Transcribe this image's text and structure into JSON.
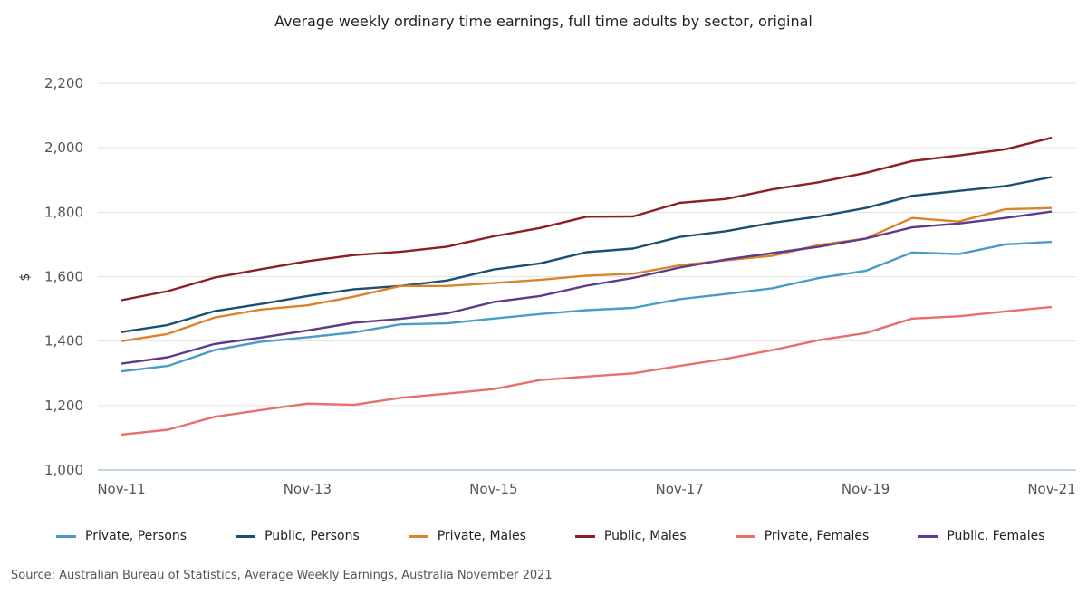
{
  "title": "Average weekly ordinary time earnings, full time adults by sector, original",
  "source": "Source: Australian Bureau of Statistics, Average Weekly Earnings, Australia November 2021",
  "chart_data": {
    "type": "line",
    "title": "Average weekly ordinary time earnings, full time adults by sector, original",
    "ylabel": "$",
    "xlabel": "",
    "ylim": [
      1000,
      2200
    ],
    "yticks": [
      1000,
      1200,
      1400,
      1600,
      1800,
      2000,
      2200
    ],
    "ytick_labels": [
      "1,000",
      "1,200",
      "1,400",
      "1,600",
      "1,800",
      "2,000",
      "2,200"
    ],
    "x": [
      "Nov-11",
      "May-12",
      "Nov-12",
      "May-13",
      "Nov-13",
      "May-14",
      "Nov-14",
      "May-15",
      "Nov-15",
      "May-16",
      "Nov-16",
      "May-17",
      "Nov-17",
      "May-18",
      "Nov-18",
      "May-19",
      "Nov-19",
      "May-20",
      "Nov-20",
      "May-21",
      "Nov-21"
    ],
    "xtick_labels": [
      "Nov-11",
      "Nov-13",
      "Nov-15",
      "Nov-17",
      "Nov-19",
      "Nov-21"
    ],
    "grid": true,
    "legend_position": "bottom",
    "series": [
      {
        "name": "Private, Persons",
        "color": "#4a9bc9",
        "values": [
          1306,
          1323,
          1372,
          1398,
          1412,
          1427,
          1452,
          1455,
          1470,
          1484,
          1496,
          1503,
          1530,
          1546,
          1564,
          1596,
          1618,
          1675,
          1670,
          1700,
          1708
        ]
      },
      {
        "name": "Public, Persons",
        "color": "#1b4f72",
        "values": [
          1428,
          1450,
          1493,
          1515,
          1540,
          1561,
          1571,
          1588,
          1622,
          1641,
          1676,
          1687,
          1723,
          1741,
          1767,
          1787,
          1813,
          1851,
          1866,
          1881,
          1909
        ]
      },
      {
        "name": "Private, Males",
        "color": "#d9842a",
        "values": [
          1400,
          1422,
          1473,
          1498,
          1511,
          1538,
          1571,
          1571,
          1580,
          1590,
          1603,
          1609,
          1635,
          1651,
          1665,
          1698,
          1718,
          1782,
          1771,
          1809,
          1813
        ]
      },
      {
        "name": "Public, Males",
        "color": "#8b1f24",
        "values": [
          1527,
          1555,
          1597,
          1623,
          1648,
          1667,
          1677,
          1693,
          1725,
          1751,
          1786,
          1787,
          1829,
          1841,
          1871,
          1893,
          1922,
          1959,
          1976,
          1995,
          2031
        ]
      },
      {
        "name": "Private, Females",
        "color": "#e8706b",
        "values": [
          1110,
          1125,
          1165,
          1186,
          1206,
          1202,
          1224,
          1237,
          1251,
          1279,
          1290,
          1300,
          1323,
          1345,
          1372,
          1403,
          1425,
          1470,
          1477,
          1492,
          1506
        ]
      },
      {
        "name": "Public, Females",
        "color": "#5e3a8c",
        "values": [
          1330,
          1350,
          1391,
          1411,
          1433,
          1457,
          1469,
          1486,
          1521,
          1540,
          1572,
          1596,
          1628,
          1653,
          1673,
          1693,
          1718,
          1753,
          1765,
          1782,
          1802
        ]
      }
    ]
  }
}
